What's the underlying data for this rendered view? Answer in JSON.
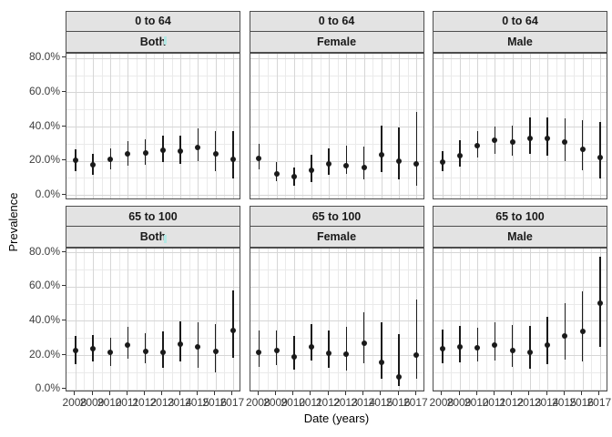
{
  "colors": {
    "point": "#1a1a1a",
    "error_bar": "#1a1a1a",
    "grid_major": "#d6d6d6",
    "grid_minor": "#eaeaea",
    "strip_background": "#e3e3e3",
    "panel_border": "#4d4d4d",
    "tick_text": "#3d3d3d",
    "axis_title_text": "#000000",
    "cursor_artifact": "#b2e9e5"
  },
  "chart_data": {
    "type": "scatter",
    "subtype": "pointrange-with-ci-facets",
    "title": "",
    "xlabel": "Date (years)",
    "ylabel": "Prevalence",
    "x": [
      2008,
      2009,
      2010,
      2011,
      2012,
      2013,
      2014,
      2015,
      2016,
      2017
    ],
    "ylim_pct": [
      0,
      80
    ],
    "y_major_ticks_pct": [
      0,
      20,
      40,
      60,
      80
    ],
    "y_minor_ticks_pct": [
      10,
      30,
      50,
      70
    ],
    "y_tick_labels": [
      "0.0%",
      "20.0%",
      "40.0%",
      "60.0%",
      "80.0%"
    ],
    "grid": "major-and-minor",
    "legend": "none",
    "facet_rows": [
      "0 to 64",
      "65 to 100"
    ],
    "facet_cols": [
      "Both",
      "Female",
      "Male"
    ],
    "facets": [
      {
        "age": "0 to 64",
        "sex": "Both",
        "estimate_pct": [
          20.4,
          17.7,
          20.9,
          23.9,
          24.4,
          26.2,
          25.5,
          27.8,
          23.9,
          20.9
        ],
        "ci_low_pct": [
          13.9,
          12.1,
          15.1,
          17.3,
          17.7,
          19.1,
          18.2,
          19.8,
          14.2,
          9.8
        ],
        "ci_high_pct": [
          26.6,
          23.9,
          27.4,
          31.3,
          32.7,
          34.9,
          34.9,
          38.9,
          37.5,
          37.6
        ]
      },
      {
        "age": "0 to 64",
        "sex": "Female",
        "estimate_pct": [
          21.3,
          12.4,
          10.6,
          14.7,
          18.1,
          17.3,
          15.9,
          23.4,
          19.8,
          18.1
        ],
        "ci_low_pct": [
          15.1,
          8.0,
          5.3,
          7.6,
          12.0,
          12.4,
          9.2,
          13.3,
          9.4,
          5.3
        ],
        "ci_high_pct": [
          30.1,
          19.1,
          16.3,
          23.5,
          27.4,
          28.7,
          28.3,
          40.7,
          39.3,
          48.7
        ]
      },
      {
        "age": "0 to 64",
        "sex": "Male",
        "estimate_pct": [
          19.4,
          22.9,
          28.6,
          32.1,
          31.0,
          33.3,
          33.1,
          31.0,
          26.9,
          22.1
        ],
        "ci_low_pct": [
          13.8,
          16.7,
          22.1,
          24.3,
          23.0,
          23.9,
          23.0,
          19.8,
          14.5,
          9.8
        ],
        "ci_high_pct": [
          25.7,
          31.9,
          37.5,
          40.2,
          40.7,
          45.5,
          45.1,
          44.6,
          43.7,
          42.9
        ]
      },
      {
        "age": "65 to 100",
        "sex": "Both",
        "estimate_pct": [
          22.7,
          23.9,
          21.8,
          25.7,
          22.1,
          21.6,
          26.2,
          24.8,
          22.1,
          34.4
        ],
        "ci_low_pct": [
          14.5,
          16.3,
          13.8,
          17.7,
          15.0,
          12.4,
          16.3,
          12.8,
          9.8,
          18.6
        ],
        "ci_high_pct": [
          31.0,
          31.9,
          30.1,
          36.3,
          32.8,
          34.0,
          39.5,
          38.9,
          38.0,
          57.9
        ]
      },
      {
        "age": "65 to 100",
        "sex": "Female",
        "estimate_pct": [
          21.6,
          22.6,
          19.0,
          24.8,
          21.2,
          20.4,
          27.1,
          16.0,
          7.5,
          20.1
        ],
        "ci_low_pct": [
          13.3,
          14.3,
          11.5,
          16.8,
          12.4,
          11.2,
          15.1,
          6.1,
          1.8,
          6.2
        ],
        "ci_high_pct": [
          34.5,
          34.5,
          31.0,
          38.1,
          34.5,
          36.6,
          44.8,
          39.0,
          32.3,
          52.2
        ]
      },
      {
        "age": "65 to 100",
        "sex": "Male",
        "estimate_pct": [
          23.9,
          24.8,
          24.4,
          26.0,
          22.7,
          21.8,
          25.7,
          31.0,
          34.0,
          50.2
        ],
        "ci_low_pct": [
          15.1,
          16.0,
          16.3,
          16.9,
          12.9,
          12.2,
          14.6,
          17.2,
          16.3,
          24.8
        ],
        "ci_high_pct": [
          34.9,
          37.2,
          35.8,
          39.3,
          37.7,
          37.2,
          42.5,
          50.5,
          57.0,
          77.4
        ]
      }
    ]
  }
}
